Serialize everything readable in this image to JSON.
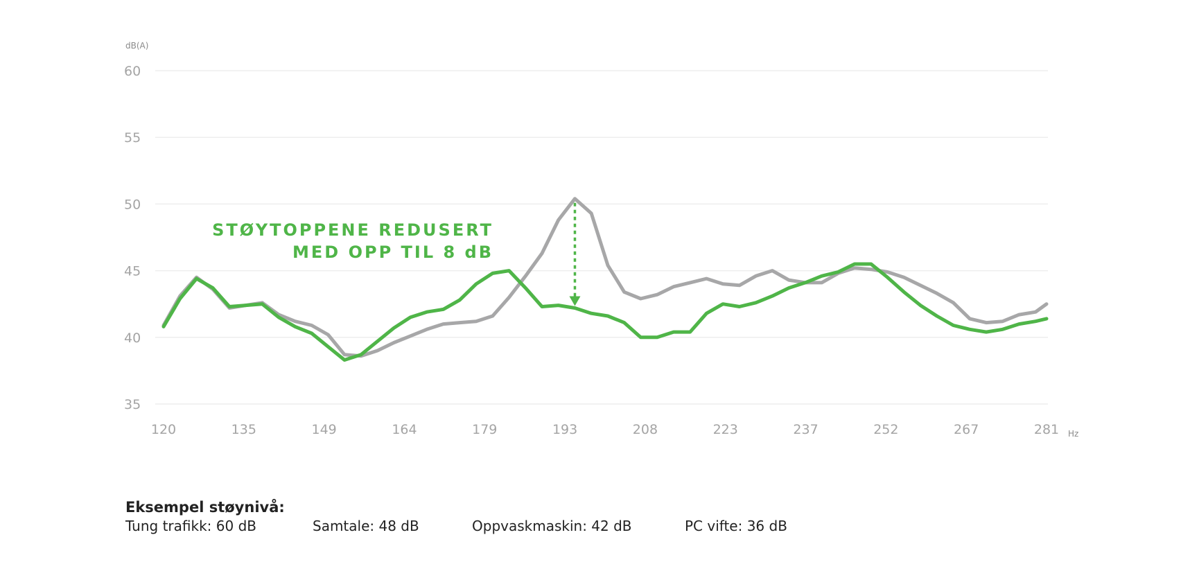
{
  "chart_data": {
    "type": "line",
    "ylabel": "dB(A)",
    "xlabel": "Hz",
    "ylim": [
      35,
      60
    ],
    "xlim": [
      120,
      281
    ],
    "yticks": [
      "60",
      "55",
      "50",
      "45",
      "40",
      "35"
    ],
    "xticks": [
      "120",
      "135",
      "149",
      "164",
      "179",
      "193",
      "208",
      "223",
      "237",
      "252",
      "267",
      "281"
    ],
    "grid": true,
    "annotation": {
      "line1": "STØYTOPPENE REDUSERT",
      "line2": "MED OPP TIL 8 dB"
    },
    "colors": {
      "grey": "#a7a7a8",
      "green": "#4fb548"
    },
    "series": [
      {
        "color": "#a7a7a8",
        "x": [
          120,
          123,
          126,
          129,
          132,
          135,
          138,
          141,
          144,
          147,
          150,
          153,
          156,
          159,
          162,
          165,
          168,
          171,
          174,
          177,
          180,
          183,
          186,
          189,
          192,
          195,
          198,
          201,
          204,
          207,
          210,
          213,
          216,
          219,
          222,
          225,
          228,
          231,
          234,
          237,
          240,
          243,
          246,
          249,
          252,
          255,
          258,
          261,
          264,
          267,
          270,
          273,
          276,
          279,
          281
        ],
        "values": [
          40.9,
          43.1,
          44.5,
          43.6,
          42.2,
          42.4,
          42.6,
          41.7,
          41.2,
          40.9,
          40.2,
          38.7,
          38.6,
          39.0,
          39.6,
          40.1,
          40.6,
          41.0,
          41.1,
          41.2,
          41.6,
          43.0,
          44.6,
          46.3,
          48.8,
          50.4,
          49.3,
          45.4,
          43.4,
          42.9,
          43.2,
          43.8,
          44.1,
          44.4,
          44.0,
          43.9,
          44.6,
          45.0,
          44.3,
          44.1,
          44.1,
          44.8,
          45.2,
          45.1,
          44.9,
          44.5,
          43.9,
          43.3,
          42.6,
          41.4,
          41.1,
          41.2,
          41.7,
          41.9,
          42.5
        ]
      },
      {
        "color": "#4fb548",
        "x": [
          120,
          123,
          126,
          129,
          132,
          135,
          138,
          141,
          144,
          147,
          150,
          153,
          156,
          159,
          162,
          165,
          168,
          171,
          174,
          177,
          180,
          183,
          186,
          189,
          192,
          195,
          198,
          201,
          204,
          207,
          210,
          213,
          216,
          219,
          222,
          225,
          228,
          231,
          234,
          237,
          240,
          243,
          246,
          249,
          252,
          255,
          258,
          261,
          264,
          267,
          270,
          273,
          276,
          279,
          281
        ],
        "values": [
          40.8,
          42.9,
          44.4,
          43.7,
          42.3,
          42.4,
          42.5,
          41.5,
          40.8,
          40.3,
          39.3,
          38.3,
          38.7,
          39.7,
          40.7,
          41.5,
          41.9,
          42.1,
          42.8,
          44.0,
          44.8,
          45.0,
          43.7,
          42.3,
          42.4,
          42.2,
          41.8,
          41.6,
          41.1,
          40.0,
          40.0,
          40.4,
          40.4,
          41.8,
          42.5,
          42.3,
          42.6,
          43.1,
          43.7,
          44.1,
          44.6,
          44.9,
          45.5,
          45.5,
          44.5,
          43.4,
          42.4,
          41.6,
          40.9,
          40.6,
          40.4,
          40.6,
          41.0,
          41.2,
          41.4
        ]
      }
    ]
  },
  "examples": {
    "title": "Eksempel støynivå:",
    "items": [
      "Tung trafikk: 60 dB",
      "Samtale: 48 dB",
      "Oppvaskmaskin: 42 dB",
      "PC vifte: 36 dB"
    ]
  }
}
